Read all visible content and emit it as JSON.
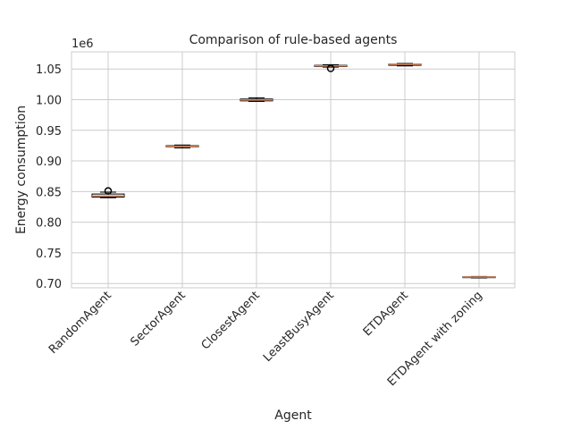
{
  "chart_data": {
    "type": "box",
    "title": "Comparison of rule-based agents",
    "xlabel": "Agent",
    "ylabel": "Energy consumption",
    "y_offset_label": "1e6",
    "ylim": [
      0.693,
      1.078
    ],
    "yticks": [
      0.7,
      0.75,
      0.8,
      0.85,
      0.9,
      0.95,
      1.0,
      1.05
    ],
    "ytick_labels": [
      "0.70",
      "0.75",
      "0.80",
      "0.85",
      "0.90",
      "0.95",
      "1.00",
      "1.05"
    ],
    "grid": true,
    "categories": [
      "RandomAgent",
      "SectorAgent",
      "ClosestAgent",
      "LeastBusyAgent",
      "ETDAgent",
      "ETDAgent with zoning"
    ],
    "boxes": [
      {
        "whisker_low": 0.84,
        "q1": 0.841,
        "median": 0.843,
        "q3": 0.846,
        "whisker_high": 0.849,
        "outliers": [
          0.851
        ]
      },
      {
        "whisker_low": 0.921,
        "q1": 0.923,
        "median": 0.924,
        "q3": 0.925,
        "whisker_high": 0.926,
        "outliers": []
      },
      {
        "whisker_low": 0.997,
        "q1": 0.998,
        "median": 0.9995,
        "q3": 1.001,
        "whisker_high": 1.003,
        "outliers": []
      },
      {
        "whisker_low": 1.053,
        "q1": 1.054,
        "median": 1.055,
        "q3": 1.056,
        "whisker_high": 1.057,
        "outliers": [
          1.051
        ]
      },
      {
        "whisker_low": 1.055,
        "q1": 1.056,
        "median": 1.0575,
        "q3": 1.058,
        "whisker_high": 1.059,
        "outliers": []
      },
      {
        "whisker_low": 0.709,
        "q1": 0.7095,
        "median": 0.7105,
        "q3": 0.711,
        "whisker_high": 0.7115,
        "outliers": []
      }
    ],
    "colors": {
      "box": "#000000",
      "median": "#e08a5c",
      "grid": "#cccccc",
      "spine": "#cccccc"
    }
  }
}
